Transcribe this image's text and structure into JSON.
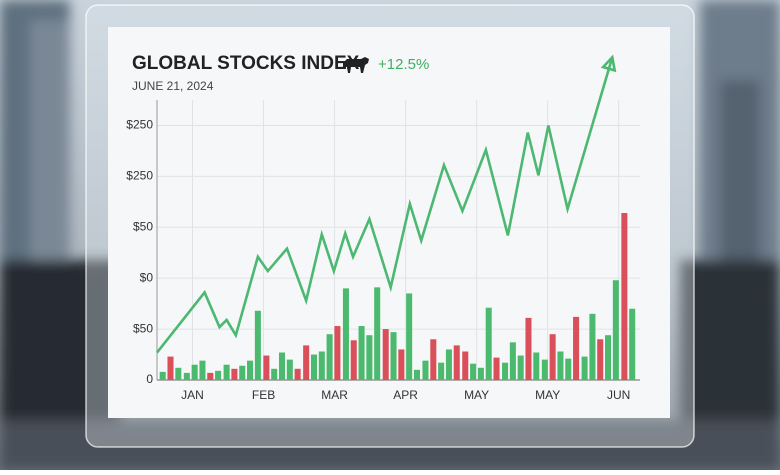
{
  "chart_data": {
    "type": "line",
    "title": "GLOBAL STOCKS INDEX",
    "change_label": "+12.5%",
    "subtitle": "JUNE 21, 2024",
    "xlim": [
      -0.5,
      6.3
    ],
    "xticks": [
      {
        "value": 0,
        "label": "JAN"
      },
      {
        "value": 1,
        "label": "FEB"
      },
      {
        "value": 2,
        "label": "MAR"
      },
      {
        "value": 3,
        "label": "APR"
      },
      {
        "value": 4,
        "label": "MAY"
      },
      {
        "value": 5,
        "label": "MAY"
      },
      {
        "value": 6,
        "label": "JUN"
      }
    ],
    "ylim": [
      0,
      275
    ],
    "yticks": [
      0,
      {
        "value": 50,
        "label": "$50"
      },
      {
        "value": 100,
        "label": "$0"
      },
      {
        "value": 150,
        "label": "$50"
      },
      {
        "value": 200,
        "label": "$250"
      },
      {
        "value": 250,
        "label": "$250"
      }
    ],
    "grid": true,
    "line": {
      "color": "#4cb871",
      "x": [
        -0.5,
        0.17,
        0.38,
        0.48,
        0.61,
        0.92,
        1.06,
        1.33,
        1.6,
        1.82,
        1.99,
        2.15,
        2.26,
        2.49,
        2.79,
        3.06,
        3.22,
        3.54,
        3.8,
        4.13,
        4.44,
        4.72,
        4.87,
        5.01,
        5.28,
        5.91
      ],
      "values": [
        27,
        86,
        52,
        59,
        44,
        121,
        107,
        129,
        78,
        143,
        107,
        144,
        121,
        158,
        91,
        173,
        137,
        211,
        166,
        226,
        142,
        243,
        201,
        250,
        168,
        317
      ]
    },
    "volume": {
      "type": "bar",
      "x": [
        -0.42,
        -0.31,
        -0.2,
        -0.08,
        0.03,
        0.14,
        0.25,
        0.36,
        0.48,
        0.59,
        0.7,
        0.81,
        0.92,
        1.04,
        1.15,
        1.26,
        1.37,
        1.48,
        1.6,
        1.71,
        1.82,
        1.93,
        2.04,
        2.16,
        2.27,
        2.38,
        2.49,
        2.6,
        2.72,
        2.83,
        2.94,
        3.05,
        3.16,
        3.28,
        3.39,
        3.5,
        3.61,
        3.72,
        3.84,
        3.95,
        4.06,
        4.17,
        4.28,
        4.4,
        4.51,
        4.62,
        4.73,
        4.84,
        4.96,
        5.07,
        5.18,
        5.29,
        5.4,
        5.52,
        5.63,
        5.74,
        5.85,
        5.96,
        6.08,
        6.19
      ],
      "values": [
        8,
        23,
        12,
        7,
        15,
        19,
        7,
        9,
        15,
        11,
        14,
        19,
        68,
        24,
        11,
        27,
        20,
        11,
        34,
        25,
        28,
        45,
        53,
        90,
        39,
        53,
        44,
        91,
        50,
        47,
        30,
        85,
        10,
        19,
        40,
        17,
        30,
        34,
        28,
        16,
        12,
        71,
        22,
        17,
        37,
        24,
        61,
        27,
        20,
        45,
        28,
        21,
        62,
        23,
        65,
        40,
        44,
        98,
        164,
        70
      ],
      "colors": [
        "#4cba6e",
        "#d9505a",
        "#4cba6e",
        "#4cba6e",
        "#4cba6e",
        "#4cba6e",
        "#d9505a",
        "#4cba6e",
        "#4cba6e",
        "#d9505a",
        "#4cba6e",
        "#4cba6e",
        "#4cba6e",
        "#d9505a",
        "#4cba6e",
        "#4cba6e",
        "#4cba6e",
        "#d9505a",
        "#d9505a",
        "#4cba6e",
        "#4cba6e",
        "#4cba6e",
        "#d9505a",
        "#4cba6e",
        "#d9505a",
        "#4cba6e",
        "#4cba6e",
        "#4cba6e",
        "#d9505a",
        "#4cba6e",
        "#d9505a",
        "#4cba6e",
        "#4cba6e",
        "#4cba6e",
        "#d9505a",
        "#4cba6e",
        "#4cba6e",
        "#d9505a",
        "#d9505a",
        "#4cba6e",
        "#4cba6e",
        "#4cba6e",
        "#d9505a",
        "#4cba6e",
        "#4cba6e",
        "#4cba6e",
        "#d9505a",
        "#4cba6e",
        "#4cba6e",
        "#d9505a",
        "#4cba6e",
        "#4cba6e",
        "#d9505a",
        "#4cba6e",
        "#4cba6e",
        "#d9505a",
        "#4cba6e",
        "#4cba6e",
        "#d9505a",
        "#4cba6e"
      ]
    }
  }
}
